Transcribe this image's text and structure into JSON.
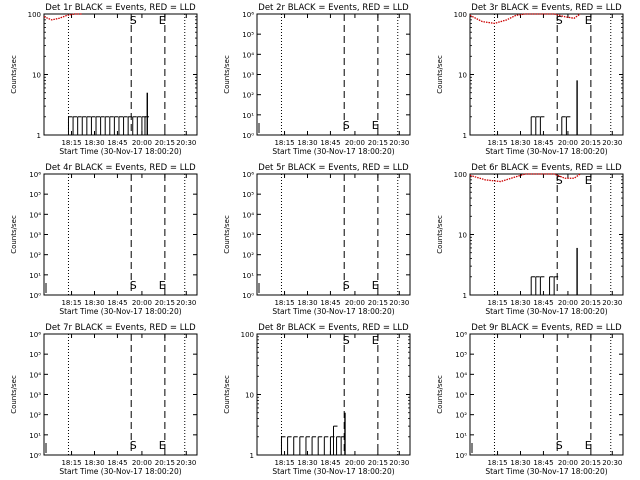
{
  "colors": {
    "events": "#000000",
    "lld": "#cc0000",
    "background": "#ffffff"
  },
  "xlabel": "Start Time (30-Nov-17 18:00:20)",
  "xticks": [
    "18:15",
    "18:30",
    "18:45",
    "20:00",
    "20:15",
    "20:30"
  ],
  "ylabel": "Counts/sec",
  "chart_data": [
    {
      "type": "line",
      "title": "Det 1r BLACK = Events, RED = LLD",
      "scale": "log",
      "ylim": [
        1,
        100
      ],
      "yticks": [
        "1",
        "10",
        "100"
      ],
      "markers": [
        {
          "label": "S"
        },
        {
          "label": "E"
        }
      ],
      "events": {
        "x": [
          0.16,
          0.19,
          0.22,
          0.25,
          0.28,
          0.31,
          0.34,
          0.37,
          0.4,
          0.43,
          0.46,
          0.49,
          0.52,
          0.55,
          0.58,
          0.61,
          0.64,
          0.66
        ],
        "y": [
          2,
          2,
          2,
          2,
          2,
          2,
          2,
          2,
          2,
          2,
          2,
          2,
          2,
          2,
          2,
          2,
          2,
          2
        ]
      },
      "spike": {
        "x": 0.675,
        "y": 5
      },
      "lld": {
        "x": [
          0.0,
          0.05,
          0.1,
          0.15,
          0.2,
          0.25
        ],
        "y": [
          90,
          80,
          85,
          95,
          100,
          100
        ]
      }
    },
    {
      "type": "line",
      "title": "Det 2r BLACK = Events, RED = LLD",
      "scale": "log-exp",
      "ylim": [
        1,
        1000000
      ],
      "yticks": [
        "10⁰",
        "10¹",
        "10²",
        "10³",
        "10⁴",
        "10⁵",
        "10⁶"
      ],
      "markers": [
        {
          "label": "S"
        },
        {
          "label": "E"
        }
      ],
      "events": {
        "x": [],
        "y": []
      },
      "spike": null,
      "lld": {
        "x": [],
        "y": []
      }
    },
    {
      "type": "line",
      "title": "Det 3r BLACK = Events, RED = LLD",
      "scale": "log",
      "ylim": [
        1,
        100
      ],
      "yticks": [
        "1",
        "10",
        "100"
      ],
      "markers": [
        {
          "label": "S"
        },
        {
          "label": "E"
        }
      ],
      "events": {
        "x": [
          0.4,
          0.43,
          0.46,
          0.6,
          0.63
        ],
        "y": [
          2,
          2,
          2,
          2,
          2
        ]
      },
      "spike": {
        "x": 0.7,
        "y": 8
      },
      "lld": {
        "x": [
          0.0,
          0.08,
          0.16,
          0.24,
          0.3,
          0.36,
          0.55,
          0.62,
          0.68,
          0.72
        ],
        "y": [
          95,
          75,
          70,
          80,
          95,
          100,
          100,
          90,
          85,
          100
        ]
      }
    },
    {
      "type": "line",
      "title": "Det 4r BLACK = Events, RED = LLD",
      "scale": "log-exp",
      "ylim": [
        1,
        1000000
      ],
      "yticks": [
        "10⁰",
        "10¹",
        "10²",
        "10³",
        "10⁴",
        "10⁵",
        "10⁶"
      ],
      "markers": [
        {
          "label": "S"
        },
        {
          "label": "E"
        }
      ],
      "events": {
        "x": [],
        "y": []
      },
      "spike": null,
      "lld": {
        "x": [],
        "y": []
      }
    },
    {
      "type": "line",
      "title": "Det 5r BLACK = Events, RED = LLD",
      "scale": "log-exp",
      "ylim": [
        1,
        1000000
      ],
      "yticks": [
        "10⁰",
        "10¹",
        "10²",
        "10³",
        "10⁴",
        "10⁵",
        "10⁶"
      ],
      "markers": [
        {
          "label": "S"
        },
        {
          "label": "E"
        }
      ],
      "events": {
        "x": [],
        "y": []
      },
      "spike": null,
      "lld": {
        "x": [],
        "y": []
      }
    },
    {
      "type": "line",
      "title": "Det 6r BLACK = Events, RED = LLD",
      "scale": "log",
      "ylim": [
        1,
        100
      ],
      "yticks": [
        "1",
        "10",
        "100"
      ],
      "markers": [
        {
          "label": "S"
        },
        {
          "label": "E"
        }
      ],
      "events": {
        "x": [
          0.4,
          0.43,
          0.46,
          0.52,
          0.55
        ],
        "y": [
          2,
          2,
          2,
          2,
          2
        ]
      },
      "spike": {
        "x": 0.7,
        "y": 6
      },
      "lld": {
        "x": [
          0.0,
          0.1,
          0.2,
          0.3,
          0.36,
          0.55,
          0.62,
          0.68,
          0.72
        ],
        "y": [
          95,
          80,
          75,
          90,
          100,
          100,
          85,
          85,
          100
        ]
      }
    },
    {
      "type": "line",
      "title": "Det 7r BLACK = Events, RED = LLD",
      "scale": "log-exp",
      "ylim": [
        1,
        1000000
      ],
      "yticks": [
        "10⁰",
        "10¹",
        "10²",
        "10³",
        "10⁴",
        "10⁵",
        "10⁶"
      ],
      "markers": [
        {
          "label": "S"
        },
        {
          "label": "E"
        }
      ],
      "events": {
        "x": [],
        "y": []
      },
      "spike": null,
      "lld": {
        "x": [],
        "y": []
      }
    },
    {
      "type": "line",
      "title": "Det 8r BLACK = Events, RED = LLD",
      "scale": "log",
      "ylim": [
        1,
        100
      ],
      "yticks": [
        "1",
        "10",
        "100"
      ],
      "markers": [
        {
          "label": "S"
        },
        {
          "label": "E"
        }
      ],
      "events": {
        "x": [
          0.16,
          0.2,
          0.24,
          0.28,
          0.32,
          0.36,
          0.4,
          0.44,
          0.48,
          0.5,
          0.52,
          0.55
        ],
        "y": [
          2,
          2,
          2,
          2,
          2,
          2,
          2,
          2,
          2,
          3,
          2,
          2
        ]
      },
      "spike": {
        "x": 0.575,
        "y": 5
      },
      "lld": {
        "x": [],
        "y": []
      }
    },
    {
      "type": "line",
      "title": "Det 9r BLACK = Events, RED = LLD",
      "scale": "log-exp",
      "ylim": [
        1,
        1000000
      ],
      "yticks": [
        "10⁰",
        "10¹",
        "10²",
        "10³",
        "10⁴",
        "10⁵",
        "10⁶"
      ],
      "markers": [
        {
          "label": "S"
        },
        {
          "label": "E"
        }
      ],
      "events": {
        "x": [],
        "y": []
      },
      "spike": null,
      "lld": {
        "x": [],
        "y": []
      }
    }
  ]
}
